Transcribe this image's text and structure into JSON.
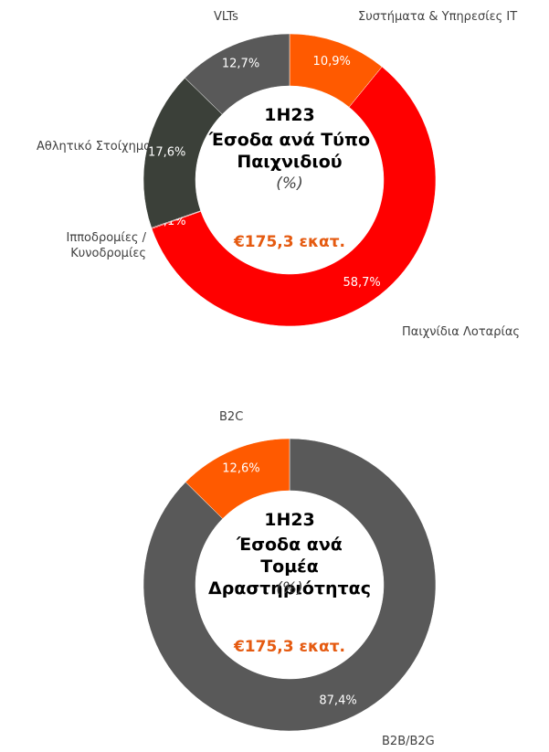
{
  "chart_data": [
    {
      "type": "donut",
      "title": "1H23",
      "subtitle": "Έσοδα ανά Τύπο Παιχνιδιού",
      "unit_label": "(%)",
      "annotation": "€175,3 εκατ.",
      "categories": [
        "Συστήματα & Υπηρεσίες IT",
        "Παιχνίδια Λοταρίας",
        "Ιπποδρομίες / Κυνοδρομίες",
        "Αθλητικό Στοίχημα",
        "VLTs"
      ],
      "values": [
        10.9,
        58.7,
        0.1,
        17.6,
        12.7
      ],
      "value_labels": [
        "10,9%",
        "58,7%",
        "0,1%",
        "17,6%",
        "12,7%"
      ],
      "colors": [
        "#ff5a00",
        "#ff0000",
        "#c00000",
        "#3b4039",
        "#595959"
      ]
    },
    {
      "type": "donut",
      "title": "1H23",
      "subtitle": "Έσοδα ανά Τομέα Δραστηριότητας",
      "unit_label": "(%)",
      "annotation": "€175,3 εκατ.",
      "categories": [
        "B2B/B2G",
        "B2C"
      ],
      "values": [
        87.4,
        12.6
      ],
      "value_labels": [
        "87,4%",
        "12,6%"
      ],
      "colors": [
        "#595959",
        "#ff5a00"
      ]
    }
  ]
}
